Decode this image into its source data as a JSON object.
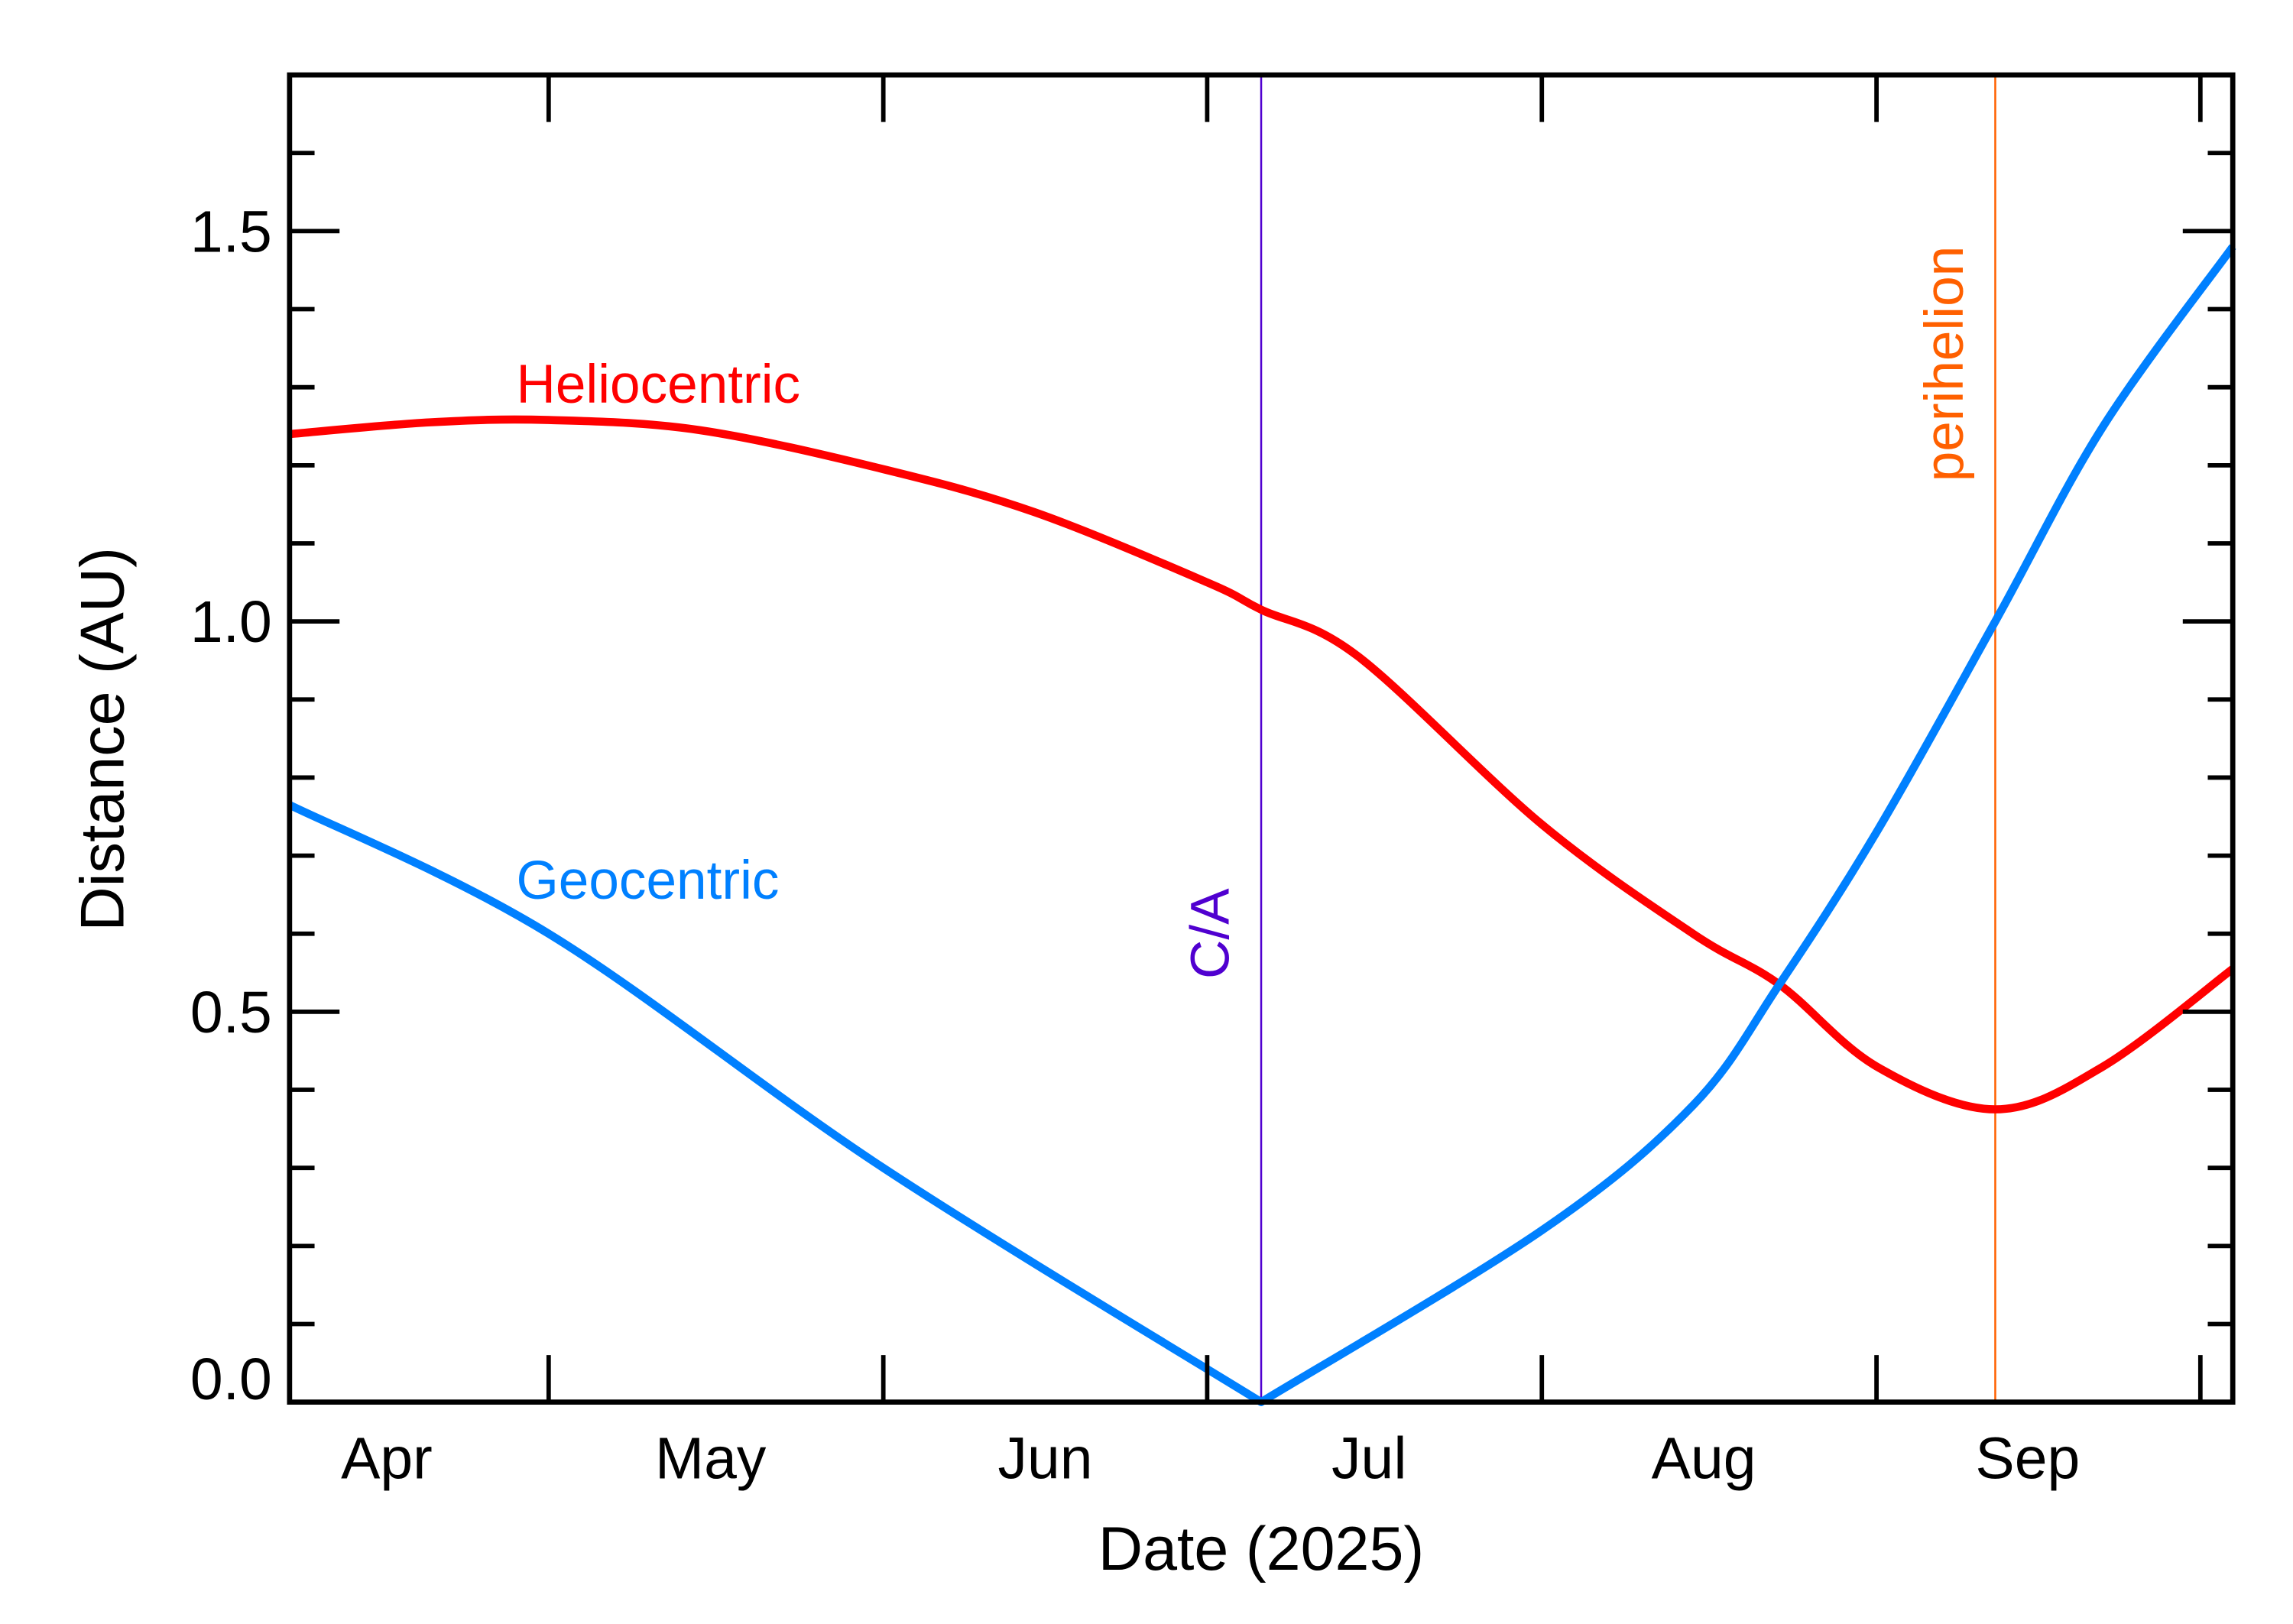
{
  "chart_data": {
    "type": "line",
    "title": "",
    "xlabel": "Date (2025)",
    "ylabel": "Distance (AU)",
    "xlim": [
      "2025-04-07",
      "2025-10-04"
    ],
    "ylim": [
      0,
      1.7
    ],
    "x_ticks": [
      {
        "date": "2025-05-01"
      },
      {
        "date": "2025-06-01"
      },
      {
        "date": "2025-07-01"
      },
      {
        "date": "2025-08-01"
      },
      {
        "date": "2025-09-01"
      },
      {
        "date": "2025-10-01"
      }
    ],
    "x_tick_labels": [
      {
        "label": "Apr",
        "date": "2025-04-16"
      },
      {
        "label": "May",
        "date": "2025-05-16"
      },
      {
        "label": "Jun",
        "date": "2025-06-16"
      },
      {
        "label": "Jul",
        "date": "2025-07-16"
      },
      {
        "label": "Aug",
        "date": "2025-08-16"
      },
      {
        "label": "Sep",
        "date": "2025-09-15"
      }
    ],
    "y_ticks": [
      {
        "value": 0.0,
        "label": "0.0"
      },
      {
        "value": 0.5,
        "label": "0.5"
      },
      {
        "value": 1.0,
        "label": "1.0"
      },
      {
        "value": 1.5,
        "label": "1.5"
      }
    ],
    "y_minor_step": 0.1,
    "grid": false,
    "series": [
      {
        "name": "Heliocentric",
        "color": "#ff0000",
        "label_at": {
          "date": "2025-04-28",
          "value": 1.28
        },
        "points": [
          [
            "2025-04-07",
            1.24
          ],
          [
            "2025-04-20",
            1.255
          ],
          [
            "2025-05-01",
            1.258
          ],
          [
            "2025-05-15",
            1.245
          ],
          [
            "2025-06-01",
            1.195
          ],
          [
            "2025-06-15",
            1.14
          ],
          [
            "2025-07-01",
            1.05
          ],
          [
            "2025-07-06",
            1.015
          ],
          [
            "2025-07-15",
            0.955
          ],
          [
            "2025-08-01",
            0.74
          ],
          [
            "2025-08-15",
            0.6
          ],
          [
            "2025-08-23",
            0.535
          ],
          [
            "2025-09-01",
            0.43
          ],
          [
            "2025-09-12",
            0.375
          ],
          [
            "2025-09-22",
            0.43
          ],
          [
            "2025-10-04",
            0.555
          ]
        ]
      },
      {
        "name": "Geocentric",
        "color": "#0080ff",
        "label_at": {
          "date": "2025-04-28",
          "value": 0.645
        },
        "points": [
          [
            "2025-04-07",
            0.765
          ],
          [
            "2025-05-01",
            0.6
          ],
          [
            "2025-06-01",
            0.3
          ],
          [
            "2025-07-06",
            0.0
          ],
          [
            "2025-07-06",
            0.0
          ],
          [
            "2025-08-01",
            0.22
          ],
          [
            "2025-08-15",
            0.38
          ],
          [
            "2025-08-23",
            0.535
          ],
          [
            "2025-09-01",
            0.73
          ],
          [
            "2025-09-12",
            1.0
          ],
          [
            "2025-09-22",
            1.25
          ],
          [
            "2025-10-04",
            1.48
          ]
        ]
      }
    ],
    "annotations": [
      {
        "text": "C/A",
        "date": "2025-07-06",
        "color": "#5000d0",
        "label_value": 0.6
      },
      {
        "text": "perihelion",
        "date": "2025-09-12",
        "color": "#ff6000",
        "label_value": 1.33
      }
    ]
  }
}
